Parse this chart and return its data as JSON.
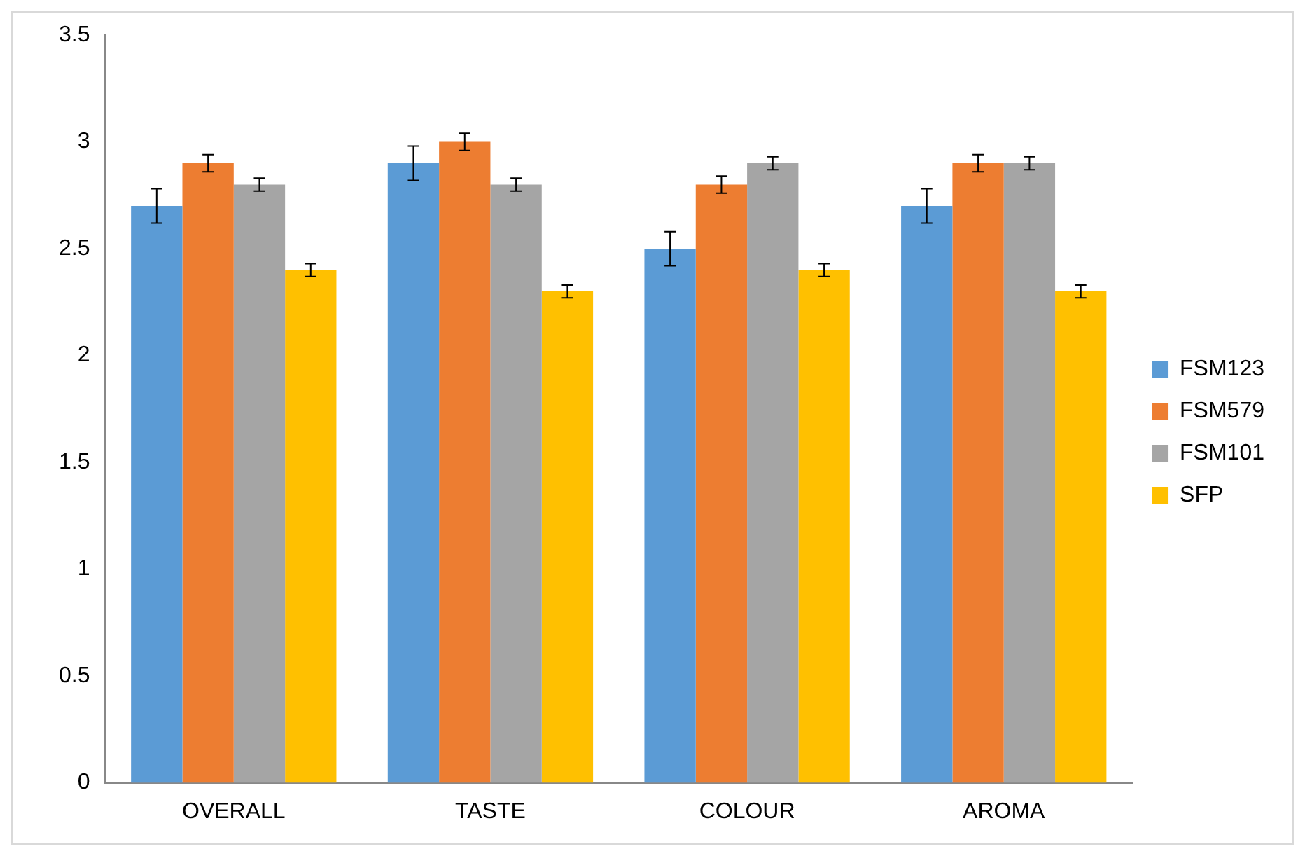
{
  "chart_data": {
    "type": "bar",
    "categories": [
      "OVERALL",
      "TASTE",
      "COLOUR",
      "AROMA"
    ],
    "series": [
      {
        "name": "FSM123",
        "color": "#5b9bd5",
        "values": [
          2.7,
          2.9,
          2.5,
          2.7
        ],
        "errors": [
          0.08,
          0.08,
          0.08,
          0.08
        ]
      },
      {
        "name": "FSM579",
        "color": "#ed7d31",
        "values": [
          2.9,
          3.0,
          2.8,
          2.9
        ],
        "errors": [
          0.04,
          0.04,
          0.04,
          0.04
        ]
      },
      {
        "name": "FSM101",
        "color": "#a5a5a5",
        "values": [
          2.8,
          2.8,
          2.9,
          2.9
        ],
        "errors": [
          0.03,
          0.03,
          0.03,
          0.03
        ]
      },
      {
        "name": "SFP",
        "color": "#ffc000",
        "values": [
          2.4,
          2.3,
          2.4,
          2.3
        ],
        "errors": [
          0.03,
          0.03,
          0.03,
          0.03
        ]
      }
    ],
    "ylim": [
      0,
      3.5
    ],
    "yticks": [
      0,
      0.5,
      1,
      1.5,
      2,
      2.5,
      3,
      3.5
    ],
    "legend": "right"
  }
}
